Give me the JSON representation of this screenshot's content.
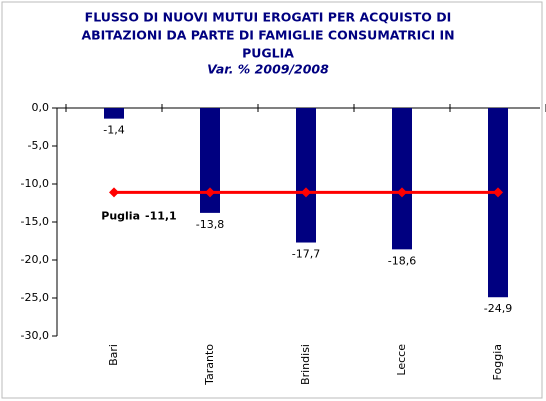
{
  "chart_data": {
    "type": "bar",
    "title": [
      "FLUSSO DI NUOVI MUTUI EROGATI PER ACQUISTO DI",
      "ABITAZIONI DA PARTE DI FAMIGLIE CONSUMATRICI IN",
      "PUGLIA"
    ],
    "subtitle": "Var. %  2009/2008",
    "categories": [
      "Bari",
      "Taranto",
      "Brindisi",
      "Lecce",
      "Foggia"
    ],
    "values": [
      -1.4,
      -13.8,
      -17.7,
      -18.6,
      -24.9
    ],
    "value_labels": [
      "-1,4",
      "-13,8",
      "-17,7",
      "-18,6",
      "-24,9"
    ],
    "color": "#000080",
    "ylim": [
      -30,
      0
    ],
    "yticks": [
      {
        "value": 0,
        "label": "0,0"
      },
      {
        "value": -5,
        "label": "-5,0"
      },
      {
        "value": -10,
        "label": "-10,0"
      },
      {
        "value": -15,
        "label": "-15,0"
      },
      {
        "value": -20,
        "label": "-20,0"
      },
      {
        "value": -25,
        "label": "-25,0"
      },
      {
        "value": -30,
        "label": "-30,0"
      }
    ],
    "reference": {
      "name": "Puglia",
      "value": -11.1,
      "value_label": "-11,1",
      "color": "#ff0000"
    }
  }
}
